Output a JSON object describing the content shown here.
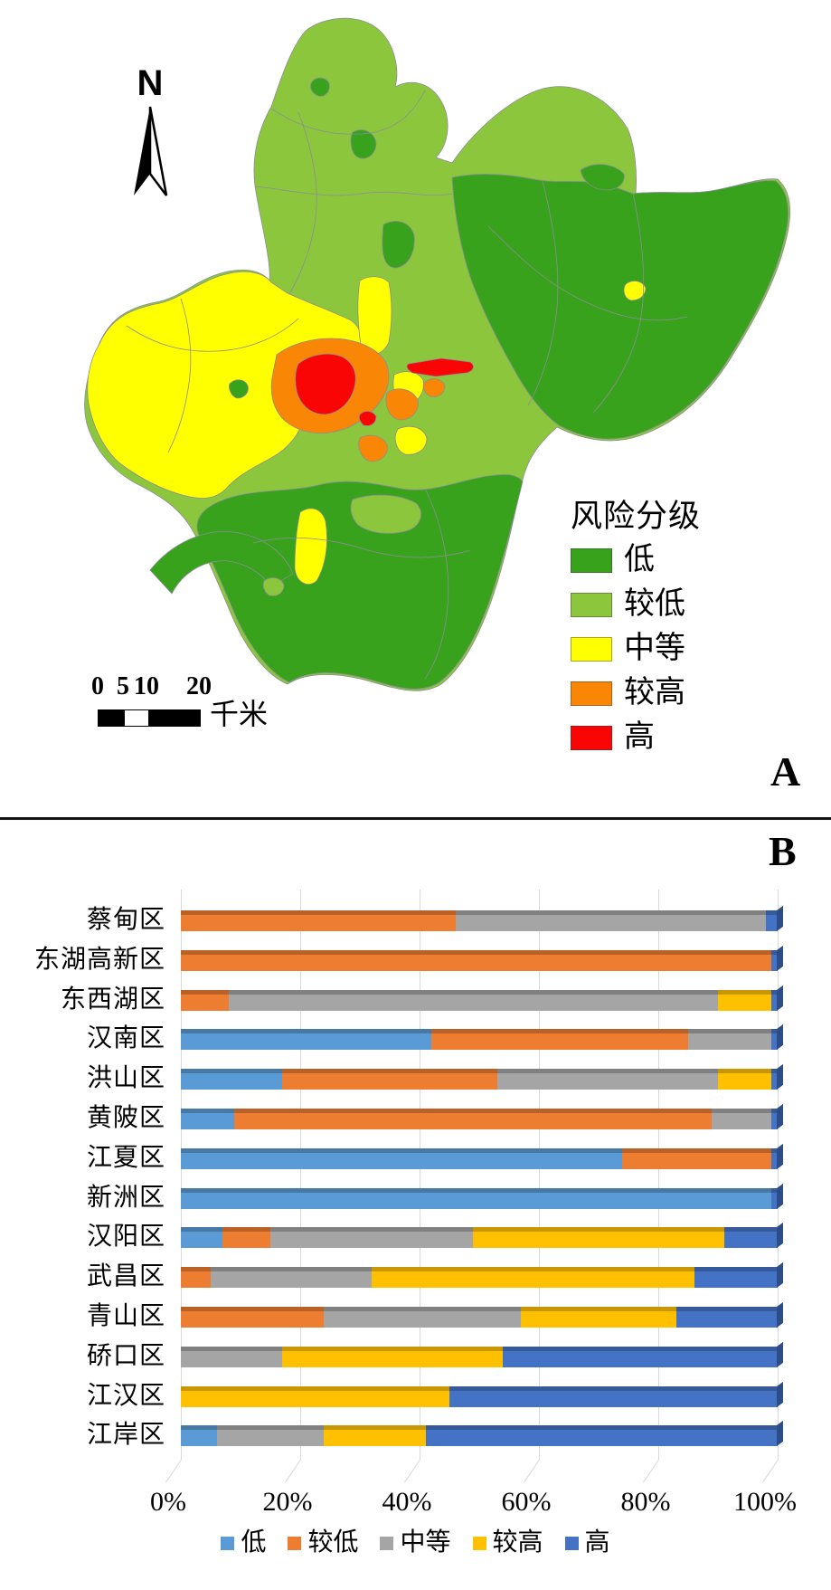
{
  "panel_a": {
    "label": "A",
    "north_label": "N",
    "legend_title": "风险分级",
    "legend_items": [
      {
        "label": "低",
        "color": "#38A21C"
      },
      {
        "label": "较低",
        "color": "#8CC63C"
      },
      {
        "label": "中等",
        "color": "#FFFF00"
      },
      {
        "label": "较高",
        "color": "#F98605"
      },
      {
        "label": "高",
        "color": "#FA0505"
      }
    ],
    "scale_bar": {
      "ticks": [
        "0",
        "5",
        "10",
        "20"
      ],
      "unit": "千米"
    }
  },
  "panel_b": {
    "label": "B"
  },
  "chart_data": {
    "type": "bar",
    "stacked": true,
    "orientation": "horizontal",
    "unit": "percent",
    "title": "",
    "xlabel": "",
    "ylabel": "",
    "xlim": [
      0,
      100
    ],
    "x_ticks": [
      "0%",
      "20%",
      "40%",
      "60%",
      "80%",
      "100%"
    ],
    "gridlines": true,
    "legend_position": "bottom",
    "categories": [
      "蔡甸区",
      "东湖高新区",
      "东西湖区",
      "汉南区",
      "洪山区",
      "黄陂区",
      "江夏区",
      "新洲区",
      "汉阳区",
      "武昌区",
      "青山区",
      "硚口区",
      "江汉区",
      "江岸区"
    ],
    "series": [
      {
        "name": "低",
        "color": "#5B9BD5",
        "values": [
          0,
          0,
          0,
          42,
          17,
          9,
          74,
          99,
          7,
          0,
          0,
          0,
          0,
          6
        ]
      },
      {
        "name": "较低",
        "color": "#ED7D31",
        "values": [
          46,
          99,
          8,
          43,
          36,
          80,
          25,
          0,
          8,
          5,
          24,
          0,
          0,
          0
        ]
      },
      {
        "name": "中等",
        "color": "#A5A5A5",
        "values": [
          52,
          0,
          82,
          14,
          37,
          10,
          0,
          0,
          34,
          27,
          33,
          17,
          0,
          18
        ]
      },
      {
        "name": "较高",
        "color": "#FFC000",
        "values": [
          0,
          0,
          9,
          0,
          9,
          0,
          0,
          0,
          42,
          54,
          26,
          37,
          45,
          17
        ]
      },
      {
        "name": "高",
        "color": "#4472C4",
        "values": [
          2,
          1,
          1,
          1,
          1,
          1,
          1,
          1,
          9,
          14,
          17,
          46,
          55,
          59
        ]
      }
    ],
    "cap_color": "#2d4d86"
  }
}
